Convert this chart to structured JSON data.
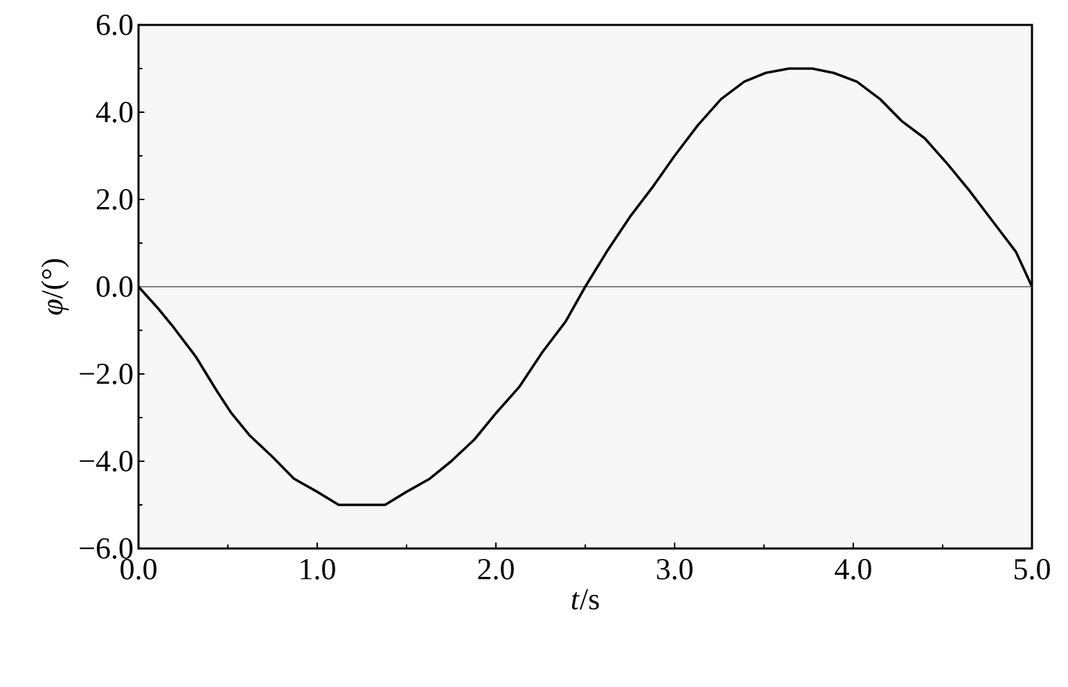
{
  "chart_data": {
    "type": "line",
    "xlabel": "*t*/s",
    "ylabel": "*φ*/(°)",
    "x": [
      0,
      0.11,
      0.19,
      0.32,
      0.44,
      0.52,
      0.62,
      0.75,
      0.87,
      1.0,
      1.12,
      1.25,
      1.38,
      1.5,
      1.63,
      1.75,
      1.88,
      2.0,
      2.13,
      2.26,
      2.39,
      2.5,
      2.62,
      2.75,
      2.88,
      3.0,
      3.13,
      3.26,
      3.39,
      3.51,
      3.64,
      3.77,
      3.89,
      4.02,
      4.15,
      4.27,
      4.4,
      4.53,
      4.65,
      4.78,
      4.91,
      5.0
    ],
    "series": [
      {
        "color": "#000000",
        "values": [
          0,
          -0.5,
          -0.9,
          -1.6,
          -2.4,
          -2.9,
          -3.4,
          -3.9,
          -4.4,
          -4.7,
          -5.0,
          -5.0,
          -5.0,
          -4.7,
          -4.4,
          -4.0,
          -3.5,
          -2.9,
          -2.3,
          -1.5,
          -0.8,
          0,
          0.8,
          1.6,
          2.3,
          3.0,
          3.7,
          4.3,
          4.7,
          4.9,
          5.0,
          5.0,
          4.9,
          4.7,
          4.3,
          3.8,
          3.4,
          2.8,
          2.2,
          1.5,
          0.8,
          0
        ]
      }
    ],
    "xlim": [
      0,
      5
    ],
    "ylim": [
      -6,
      6
    ],
    "xticks": [
      {
        "value": 0,
        "label": "0.0"
      },
      {
        "value": 1,
        "label": "1.0"
      },
      {
        "value": 2,
        "label": "2.0"
      },
      {
        "value": 3,
        "label": "3.0"
      },
      {
        "value": 4,
        "label": "4.0"
      },
      {
        "value": 5,
        "label": "5.0"
      }
    ],
    "yticks": [
      {
        "value": -6,
        "label": "−6.0"
      },
      {
        "value": -4,
        "label": "−4.0"
      },
      {
        "value": -2,
        "label": "−2.0"
      },
      {
        "value": 0,
        "label": "0.0"
      },
      {
        "value": 2,
        "label": "2.0"
      },
      {
        "value": 4,
        "label": "4.0"
      },
      {
        "value": 6,
        "label": "6.0"
      }
    ],
    "ref_lines": [
      {
        "axis": "y",
        "value": 0,
        "color": "#808080"
      }
    ],
    "grid": false,
    "marker": "none",
    "line_style": "solid"
  }
}
